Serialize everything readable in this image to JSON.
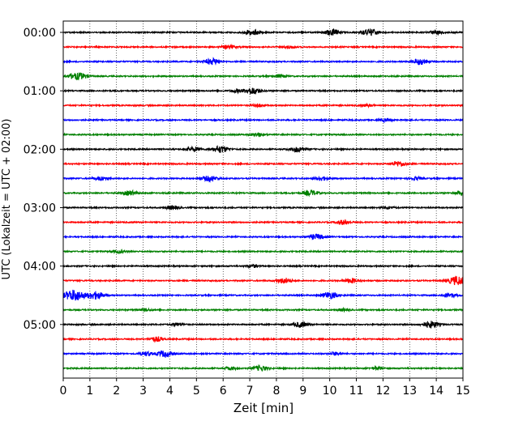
{
  "chart_data": {
    "type": "line",
    "title": "",
    "xlabel": "Zeit  [min]",
    "ylabel": "UTC (Lokalzeit = UTC + 02:00)",
    "xlim": [
      0,
      15
    ],
    "x_ticks": [
      0,
      1,
      2,
      3,
      4,
      5,
      6,
      7,
      8,
      9,
      10,
      11,
      12,
      13,
      14,
      15
    ],
    "x_tick_labels": [
      "0",
      "1",
      "2",
      "3",
      "4",
      "5",
      "6",
      "7",
      "8",
      "9",
      "10",
      "11",
      "12",
      "13",
      "14",
      "15"
    ],
    "grid": "vertical dotted at each minute",
    "y_tick_labels": [
      "00:00",
      "01:00",
      "02:00",
      "03:00",
      "04:00",
      "05:00"
    ],
    "traces_per_hour": 4,
    "trace_colors": [
      "#000000",
      "#ff0000",
      "#0000ff",
      "#008000"
    ],
    "trace_start_times": [
      "00:00",
      "00:15",
      "00:30",
      "00:45",
      "01:00",
      "01:15",
      "01:30",
      "01:45",
      "02:00",
      "02:15",
      "02:30",
      "02:45",
      "03:00",
      "03:15",
      "03:30",
      "03:45",
      "04:00",
      "04:15",
      "04:30",
      "04:45",
      "05:00",
      "05:15",
      "05:30",
      "05:45"
    ],
    "events": [
      {
        "trace": 0,
        "x": 7.1,
        "amp": 0.35
      },
      {
        "trace": 0,
        "x": 10.1,
        "amp": 0.4
      },
      {
        "trace": 0,
        "x": 11.5,
        "amp": 0.45
      },
      {
        "trace": 0,
        "x": 14.0,
        "amp": 0.25
      },
      {
        "trace": 1,
        "x": 6.2,
        "amp": 0.25
      },
      {
        "trace": 1,
        "x": 8.5,
        "amp": 0.15
      },
      {
        "trace": 2,
        "x": 5.6,
        "amp": 0.4
      },
      {
        "trace": 2,
        "x": 13.4,
        "amp": 0.4
      },
      {
        "trace": 3,
        "x": 0.4,
        "amp": 0.3
      },
      {
        "trace": 3,
        "x": 0.7,
        "amp": 0.3
      },
      {
        "trace": 3,
        "x": 8.1,
        "amp": 0.2
      },
      {
        "trace": 4,
        "x": 7.1,
        "amp": 0.45
      },
      {
        "trace": 4,
        "x": 6.5,
        "amp": 0.2
      },
      {
        "trace": 5,
        "x": 7.3,
        "amp": 0.2
      },
      {
        "trace": 5,
        "x": 11.4,
        "amp": 0.15
      },
      {
        "trace": 6,
        "x": 12.1,
        "amp": 0.2
      },
      {
        "trace": 7,
        "x": 7.3,
        "amp": 0.25
      },
      {
        "trace": 8,
        "x": 4.9,
        "amp": 0.3
      },
      {
        "trace": 8,
        "x": 5.9,
        "amp": 0.45
      },
      {
        "trace": 8,
        "x": 8.8,
        "amp": 0.35
      },
      {
        "trace": 9,
        "x": 12.6,
        "amp": 0.35
      },
      {
        "trace": 10,
        "x": 1.4,
        "amp": 0.25
      },
      {
        "trace": 10,
        "x": 5.5,
        "amp": 0.35
      },
      {
        "trace": 10,
        "x": 9.7,
        "amp": 0.25
      },
      {
        "trace": 10,
        "x": 13.2,
        "amp": 0.2
      },
      {
        "trace": 11,
        "x": 2.5,
        "amp": 0.3
      },
      {
        "trace": 11,
        "x": 9.3,
        "amp": 0.35
      },
      {
        "trace": 11,
        "x": 15.0,
        "amp": 0.3
      },
      {
        "trace": 12,
        "x": 4.1,
        "amp": 0.25
      },
      {
        "trace": 12,
        "x": 12.2,
        "amp": 0.15
      },
      {
        "trace": 13,
        "x": 10.5,
        "amp": 0.3
      },
      {
        "trace": 14,
        "x": 9.5,
        "amp": 0.35
      },
      {
        "trace": 15,
        "x": 2.1,
        "amp": 0.2
      },
      {
        "trace": 16,
        "x": 7.1,
        "amp": 0.2
      },
      {
        "trace": 17,
        "x": 8.3,
        "amp": 0.35
      },
      {
        "trace": 17,
        "x": 10.8,
        "amp": 0.3
      },
      {
        "trace": 17,
        "x": 14.8,
        "amp": 0.6
      },
      {
        "trace": 18,
        "x": 0.4,
        "amp": 0.75
      },
      {
        "trace": 18,
        "x": 1.2,
        "amp": 0.5
      },
      {
        "trace": 18,
        "x": 10.0,
        "amp": 0.45
      },
      {
        "trace": 18,
        "x": 14.5,
        "amp": 0.3
      },
      {
        "trace": 19,
        "x": 3.1,
        "amp": 0.15
      },
      {
        "trace": 19,
        "x": 10.5,
        "amp": 0.15
      },
      {
        "trace": 20,
        "x": 8.9,
        "amp": 0.35
      },
      {
        "trace": 20,
        "x": 13.8,
        "amp": 0.45
      },
      {
        "trace": 20,
        "x": 4.3,
        "amp": 0.2
      },
      {
        "trace": 21,
        "x": 3.5,
        "amp": 0.3
      },
      {
        "trace": 22,
        "x": 3.8,
        "amp": 0.4
      },
      {
        "trace": 22,
        "x": 3.1,
        "amp": 0.25
      },
      {
        "trace": 22,
        "x": 10.2,
        "amp": 0.2
      },
      {
        "trace": 23,
        "x": 7.4,
        "amp": 0.35
      },
      {
        "trace": 23,
        "x": 6.3,
        "amp": 0.2
      },
      {
        "trace": 23,
        "x": 11.8,
        "amp": 0.2
      }
    ]
  }
}
